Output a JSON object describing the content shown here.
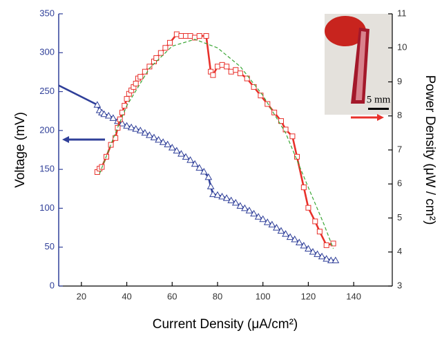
{
  "chart_data": {
    "type": "line",
    "xlabel": "Current Density (μA/cm²)",
    "ylabel": "Voltage (mV)",
    "y2label": "Power Density (μW / cm²)",
    "annotation": "5 mm",
    "xlim": [
      10,
      157
    ],
    "xticks": [
      20,
      40,
      60,
      80,
      100,
      120,
      140
    ],
    "ylim": [
      0,
      350
    ],
    "yticks": [
      0,
      50,
      100,
      150,
      200,
      250,
      300,
      350
    ],
    "y2lim": [
      3,
      11
    ],
    "y2ticks": [
      3,
      4,
      5,
      6,
      7,
      8,
      9,
      10,
      11
    ],
    "series": [
      {
        "color": "#2f3f99",
        "marker": "triangle",
        "axis": "y",
        "x": [
          10,
          27,
          28,
          29,
          30,
          32,
          34,
          36,
          38,
          40,
          42,
          44,
          46,
          48,
          50,
          52,
          54,
          56,
          58,
          60,
          62,
          64,
          66,
          68,
          70,
          72,
          74,
          76,
          77,
          78,
          80,
          82,
          84,
          86,
          88,
          90,
          92,
          94,
          96,
          98,
          100,
          102,
          104,
          106,
          108,
          110,
          112,
          114,
          116,
          118,
          120,
          122,
          124,
          126,
          128,
          130,
          132
        ],
        "values": [
          258,
          233,
          226,
          223,
          221,
          219,
          216,
          212,
          209,
          206,
          204,
          202,
          200,
          197,
          194,
          191,
          188,
          185,
          182,
          178,
          174,
          170,
          166,
          162,
          157,
          152,
          147,
          140,
          128,
          118,
          117,
          115,
          113,
          110,
          107,
          103,
          100,
          97,
          93,
          89,
          86,
          82,
          79,
          75,
          71,
          67,
          63,
          60,
          56,
          52,
          48,
          44,
          41,
          38,
          35,
          33,
          33
        ]
      },
      {
        "color": "#e8302a",
        "marker": "square",
        "axis": "y2",
        "x": [
          27,
          28,
          29,
          31,
          33,
          35,
          36,
          37,
          38,
          39,
          40,
          41,
          42,
          43,
          44,
          45,
          46,
          48,
          50,
          52,
          53,
          55,
          57,
          59,
          62,
          64,
          66,
          68,
          70,
          72,
          75,
          77,
          78,
          80,
          82,
          84,
          86,
          88,
          90,
          93,
          96,
          99,
          102,
          105,
          108,
          110,
          113,
          115,
          118,
          120,
          123,
          125,
          128,
          131
        ],
        "values": [
          6.35,
          6.45,
          6.5,
          6.8,
          7.15,
          7.35,
          7.65,
          7.9,
          8.1,
          8.3,
          8.5,
          8.65,
          8.75,
          8.85,
          8.95,
          9.1,
          9.15,
          9.3,
          9.45,
          9.6,
          9.7,
          9.85,
          10.0,
          10.15,
          10.4,
          10.35,
          10.35,
          10.35,
          10.3,
          10.35,
          10.35,
          9.3,
          9.2,
          9.45,
          9.5,
          9.45,
          9.3,
          9.35,
          9.25,
          9.1,
          8.85,
          8.6,
          8.35,
          8.1,
          7.85,
          7.6,
          7.4,
          6.8,
          5.9,
          5.3,
          4.9,
          4.6,
          4.2,
          4.25
        ]
      },
      {
        "color": "#3aa635",
        "marker": "dashed",
        "axis": "y2",
        "x": [
          28,
          35,
          40,
          50,
          60,
          70,
          80,
          90,
          100,
          110,
          120,
          127,
          131
        ],
        "values": [
          6.3,
          7.5,
          8.3,
          9.4,
          10.05,
          10.25,
          10.0,
          9.45,
          8.6,
          7.5,
          5.9,
          4.8,
          4.1
        ]
      }
    ]
  }
}
